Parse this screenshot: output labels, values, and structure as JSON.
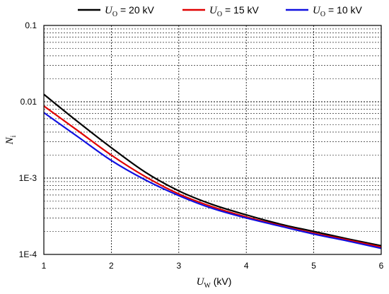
{
  "chart_data": {
    "type": "line",
    "x_axis": {
      "label_symbol": "U",
      "label_subscript": "W",
      "label_unit": " (kV)",
      "range": [
        1,
        6
      ],
      "ticks": [
        1,
        2,
        3,
        4,
        5,
        6
      ],
      "tick_labels": [
        "1",
        "2",
        "3",
        "4",
        "5",
        "6"
      ]
    },
    "y_axis": {
      "label_symbol": "N",
      "label_subscript": "i",
      "scale": "log",
      "range": [
        0.0001,
        0.1
      ],
      "ticks": [
        0.0001,
        0.001,
        0.01,
        0.1
      ],
      "tick_labels": [
        "1E-4",
        "1E-3",
        "0.01",
        "0.1"
      ]
    },
    "grid": true,
    "legend_position": "top",
    "series": [
      {
        "symbol": "U",
        "subscript": "O",
        "value_label": " = 20 kV",
        "color": "#000000",
        "x": [
          1,
          1.5,
          2,
          2.5,
          3,
          3.5,
          4,
          4.5,
          5,
          5.5,
          6
        ],
        "y": [
          0.0125,
          0.0055,
          0.0025,
          0.0012,
          0.00068,
          0.00045,
          0.00033,
          0.00025,
          0.0002,
          0.00016,
          0.00013
        ]
      },
      {
        "symbol": "U",
        "subscript": "O",
        "value_label": " = 15 kV",
        "color": "#e00000",
        "x": [
          1,
          1.5,
          2,
          2.5,
          3,
          3.5,
          4,
          4.5,
          5,
          5.5,
          6
        ],
        "y": [
          0.0088,
          0.0042,
          0.002,
          0.00105,
          0.00062,
          0.00042,
          0.00031,
          0.00024,
          0.00019,
          0.000155,
          0.000125
        ]
      },
      {
        "symbol": "U",
        "subscript": "O",
        "value_label": " = 10 kV",
        "color": "#1010e0",
        "x": [
          1,
          1.5,
          2,
          2.5,
          3,
          3.5,
          4,
          4.5,
          5,
          5.5,
          6
        ],
        "y": [
          0.0072,
          0.0035,
          0.0017,
          0.00095,
          0.00059,
          0.0004,
          0.0003,
          0.000235,
          0.000185,
          0.00015,
          0.00012
        ]
      }
    ]
  }
}
